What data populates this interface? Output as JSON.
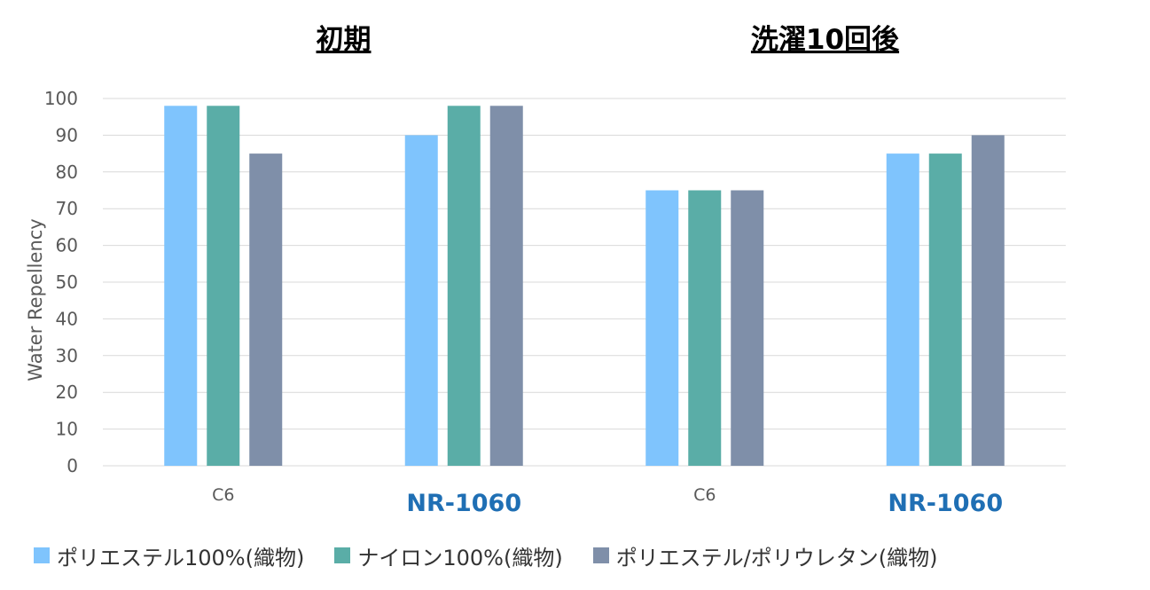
{
  "chart_data": {
    "type": "bar",
    "group_titles": [
      "初期",
      "洗濯10回後"
    ],
    "categories": [
      "C6",
      "NR-1060",
      "C6",
      "NR-1060"
    ],
    "category_emphasis": [
      false,
      true,
      false,
      true
    ],
    "ylabel": "Water Repellency",
    "ylim": [
      0,
      100
    ],
    "yticks": [
      0,
      10,
      20,
      30,
      40,
      50,
      60,
      70,
      80,
      90,
      100
    ],
    "grid": true,
    "legend_position": "bottom",
    "series": [
      {
        "name": "ポリエステル100%(織物)",
        "values": [
          98,
          90,
          75,
          85
        ],
        "color": "#7FC4FD"
      },
      {
        "name": "ナイロン100%(織物)",
        "values": [
          98,
          98,
          75,
          85
        ],
        "color": "#5AADA7"
      },
      {
        "name": "ポリエステル/ポリウレタン(織物)",
        "values": [
          85,
          98,
          75,
          90
        ],
        "color": "#7F8FA9"
      }
    ],
    "colors": {
      "grid": "#D9D9D9",
      "axis_text": "#595959",
      "emphasis_text": "#1F6FB4",
      "title_text": "#000000"
    }
  }
}
